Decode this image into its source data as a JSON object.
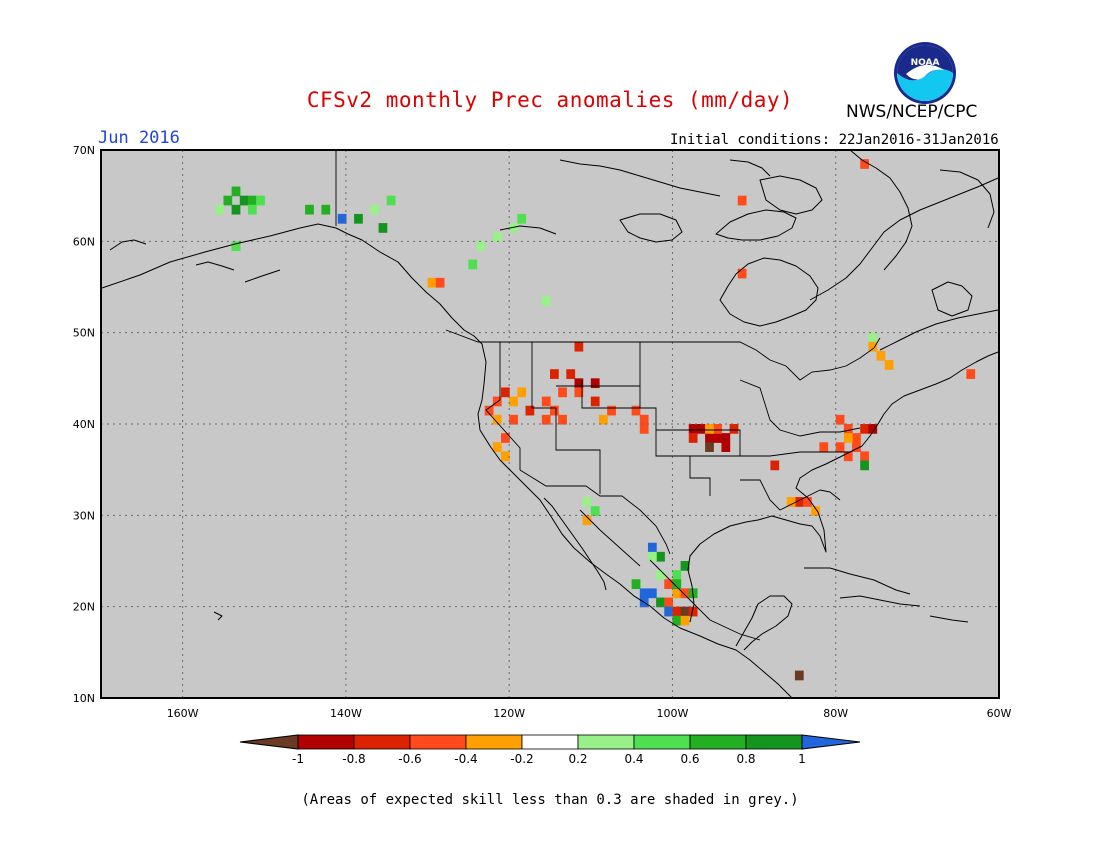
{
  "title": "CFSv2 monthly Prec anomalies (mm/day)",
  "agency": "NWS/NCEP/CPC",
  "logo_text": "NOAA",
  "month_label": "Jun 2016",
  "initial_conditions": "Initial conditions: 22Jan2016-31Jan2016",
  "note": "(Areas of expected skill less than 0.3 are shaded in grey.)",
  "colors": {
    "title": "#dd0000",
    "month": "#2244dd",
    "grey_mask": "#c8c8c8"
  },
  "map": {
    "lon_range": [
      -170,
      -60
    ],
    "lat_range": [
      10,
      70
    ],
    "lat_labels": [
      "70N",
      "60N",
      "50N",
      "40N",
      "30N",
      "20N",
      "10N"
    ],
    "lon_labels": [
      "160W",
      "140W",
      "120W",
      "100W",
      "80W",
      "60W"
    ]
  },
  "legend": {
    "labels": [
      "-1",
      "-0.8",
      "-0.6",
      "-0.4",
      "-0.2",
      "0.2",
      "0.4",
      "0.6",
      "0.8",
      "1"
    ],
    "colors": [
      "#6b3a22",
      "#b00000",
      "#dd2200",
      "#ff4a1a",
      "#ffa000",
      "#ffffff",
      "#98f088",
      "#4ee050",
      "#22b022",
      "#14961e",
      "#2266dd"
    ]
  },
  "anomaly_cells": [
    {
      "lon": -154,
      "lat": 65,
      "v": 0.6
    },
    {
      "lon": -155,
      "lat": 64,
      "v": 0.6
    },
    {
      "lon": -153,
      "lat": 64,
      "v": 0.8
    },
    {
      "lon": -152,
      "lat": 64,
      "v": 0.6
    },
    {
      "lon": -156,
      "lat": 63,
      "v": 0.2
    },
    {
      "lon": -154,
      "lat": 63,
      "v": 0.8
    },
    {
      "lon": -152,
      "lat": 63,
      "v": 0.4
    },
    {
      "lon": -151,
      "lat": 64,
      "v": 0.4
    },
    {
      "lon": -143,
      "lat": 63,
      "v": 0.6
    },
    {
      "lon": -145,
      "lat": 63,
      "v": 0.6
    },
    {
      "lon": -141,
      "lat": 62,
      "v": 1.0
    },
    {
      "lon": -139,
      "lat": 62,
      "v": 0.8
    },
    {
      "lon": -137,
      "lat": 63,
      "v": 0.2
    },
    {
      "lon": -135,
      "lat": 64,
      "v": 0.4
    },
    {
      "lon": -136,
      "lat": 61,
      "v": 0.8
    },
    {
      "lon": -154,
      "lat": 59,
      "v": 0.4
    },
    {
      "lon": -120,
      "lat": 61,
      "v": 0.2
    },
    {
      "lon": -119,
      "lat": 62,
      "v": 0.4
    },
    {
      "lon": -122,
      "lat": 60,
      "v": 0.2
    },
    {
      "lon": -124,
      "lat": 59,
      "v": 0.2
    },
    {
      "lon": -125,
      "lat": 57,
      "v": 0.4
    },
    {
      "lon": -130,
      "lat": 55,
      "v": -0.2
    },
    {
      "lon": -129,
      "lat": 55,
      "v": -0.4
    },
    {
      "lon": -116,
      "lat": 53,
      "v": 0.2
    },
    {
      "lon": -112,
      "lat": 48,
      "v": -0.6
    },
    {
      "lon": -115,
      "lat": 45,
      "v": -0.6
    },
    {
      "lon": -113,
      "lat": 45,
      "v": -0.6
    },
    {
      "lon": -112,
      "lat": 44,
      "v": -0.8
    },
    {
      "lon": -110,
      "lat": 44,
      "v": -0.8
    },
    {
      "lon": -114,
      "lat": 43,
      "v": -0.4
    },
    {
      "lon": -112,
      "lat": 43,
      "v": -0.4
    },
    {
      "lon": -116,
      "lat": 42,
      "v": -0.4
    },
    {
      "lon": -115,
      "lat": 41,
      "v": -0.4
    },
    {
      "lon": -118,
      "lat": 41,
      "v": -0.6
    },
    {
      "lon": -121,
      "lat": 43,
      "v": -0.6
    },
    {
      "lon": -122,
      "lat": 42,
      "v": -0.4
    },
    {
      "lon": -123,
      "lat": 41,
      "v": -0.4
    },
    {
      "lon": -122,
      "lat": 40,
      "v": -0.2
    },
    {
      "lon": -120,
      "lat": 42,
      "v": -0.2
    },
    {
      "lon": -119,
      "lat": 43,
      "v": -0.2
    },
    {
      "lon": -120,
      "lat": 40,
      "v": -0.4
    },
    {
      "lon": -114,
      "lat": 40,
      "v": -0.4
    },
    {
      "lon": -116,
      "lat": 40,
      "v": -0.4
    },
    {
      "lon": -121,
      "lat": 38,
      "v": -0.4
    },
    {
      "lon": -122,
      "lat": 37,
      "v": -0.2
    },
    {
      "lon": -121,
      "lat": 36,
      "v": -0.2
    },
    {
      "lon": -110,
      "lat": 42,
      "v": -0.6
    },
    {
      "lon": -108,
      "lat": 41,
      "v": -0.4
    },
    {
      "lon": -109,
      "lat": 40,
      "v": -0.2
    },
    {
      "lon": -105,
      "lat": 41,
      "v": -0.4
    },
    {
      "lon": -104,
      "lat": 40,
      "v": -0.4
    },
    {
      "lon": -104,
      "lat": 39,
      "v": -0.4
    },
    {
      "lon": -98,
      "lat": 39,
      "v": -0.8
    },
    {
      "lon": -97,
      "lat": 39,
      "v": -0.8
    },
    {
      "lon": -98,
      "lat": 38,
      "v": -0.6
    },
    {
      "lon": -96,
      "lat": 38,
      "v": -0.8
    },
    {
      "lon": -95,
      "lat": 38,
      "v": -0.8
    },
    {
      "lon": -94,
      "lat": 38,
      "v": -0.8
    },
    {
      "lon": -96,
      "lat": 37,
      "v": -1.0
    },
    {
      "lon": -94,
      "lat": 37,
      "v": -0.8
    },
    {
      "lon": -93,
      "lat": 39,
      "v": -0.6
    },
    {
      "lon": -95,
      "lat": 39,
      "v": -0.4
    },
    {
      "lon": -96,
      "lat": 39,
      "v": -0.2
    },
    {
      "lon": -88,
      "lat": 35,
      "v": -0.6
    },
    {
      "lon": -80,
      "lat": 40,
      "v": -0.4
    },
    {
      "lon": -79,
      "lat": 39,
      "v": -0.4
    },
    {
      "lon": -77,
      "lat": 39,
      "v": -0.6
    },
    {
      "lon": -76,
      "lat": 39,
      "v": -0.8
    },
    {
      "lon": -78,
      "lat": 38,
      "v": -0.4
    },
    {
      "lon": -80,
      "lat": 37,
      "v": -0.4
    },
    {
      "lon": -82,
      "lat": 37,
      "v": -0.4
    },
    {
      "lon": -78,
      "lat": 37,
      "v": -0.4
    },
    {
      "lon": -77,
      "lat": 36,
      "v": -0.4
    },
    {
      "lon": -79,
      "lat": 36,
      "v": -0.4
    },
    {
      "lon": -77,
      "lat": 35,
      "v": 0.8
    },
    {
      "lon": -79,
      "lat": 38,
      "v": -0.2
    },
    {
      "lon": -85,
      "lat": 31,
      "v": -0.6
    },
    {
      "lon": -84,
      "lat": 31,
      "v": -0.4
    },
    {
      "lon": -83,
      "lat": 30,
      "v": -0.2
    },
    {
      "lon": -86,
      "lat": 31,
      "v": -0.2
    },
    {
      "lon": -76,
      "lat": 49,
      "v": 0.2
    },
    {
      "lon": -75,
      "lat": 47,
      "v": -0.2
    },
    {
      "lon": -74,
      "lat": 46,
      "v": -0.2
    },
    {
      "lon": -76,
      "lat": 48,
      "v": -0.2
    },
    {
      "lon": -64,
      "lat": 45,
      "v": -0.4
    },
    {
      "lon": -77,
      "lat": 68,
      "v": -0.4
    },
    {
      "lon": -92,
      "lat": 64,
      "v": -0.4
    },
    {
      "lon": -92,
      "lat": 56,
      "v": -0.4
    },
    {
      "lon": -111,
      "lat": 31,
      "v": 0.2
    },
    {
      "lon": -110,
      "lat": 30,
      "v": 0.4
    },
    {
      "lon": -111,
      "lat": 29,
      "v": -0.2
    },
    {
      "lon": -103,
      "lat": 26,
      "v": 1.0
    },
    {
      "lon": -102,
      "lat": 25,
      "v": 0.8
    },
    {
      "lon": -103,
      "lat": 25,
      "v": 0.2
    },
    {
      "lon": -99,
      "lat": 24,
      "v": 0.8
    },
    {
      "lon": -100,
      "lat": 23,
      "v": 0.4
    },
    {
      "lon": -102,
      "lat": 23,
      "v": 0.2
    },
    {
      "lon": -105,
      "lat": 22,
      "v": 0.6
    },
    {
      "lon": -104,
      "lat": 21,
      "v": 1.0
    },
    {
      "lon": -103,
      "lat": 21,
      "v": 1.0
    },
    {
      "lon": -104,
      "lat": 20,
      "v": 1.0
    },
    {
      "lon": -102,
      "lat": 20,
      "v": 0.8
    },
    {
      "lon": -101,
      "lat": 20,
      "v": -0.4
    },
    {
      "lon": -100,
      "lat": 21,
      "v": -0.2
    },
    {
      "lon": -99,
      "lat": 21,
      "v": -0.4
    },
    {
      "lon": -98,
      "lat": 21,
      "v": 0.6
    },
    {
      "lon": -101,
      "lat": 19,
      "v": 1.0
    },
    {
      "lon": -100,
      "lat": 19,
      "v": -0.6
    },
    {
      "lon": -99,
      "lat": 19,
      "v": -1.0
    },
    {
      "lon": -98,
      "lat": 19,
      "v": -0.6
    },
    {
      "lon": -100,
      "lat": 18,
      "v": 0.6
    },
    {
      "lon": -99,
      "lat": 18,
      "v": -0.2
    },
    {
      "lon": -101,
      "lat": 22,
      "v": -0.4
    },
    {
      "lon": -100,
      "lat": 22,
      "v": 0.6
    },
    {
      "lon": -85,
      "lat": 12,
      "v": -1.0
    }
  ]
}
